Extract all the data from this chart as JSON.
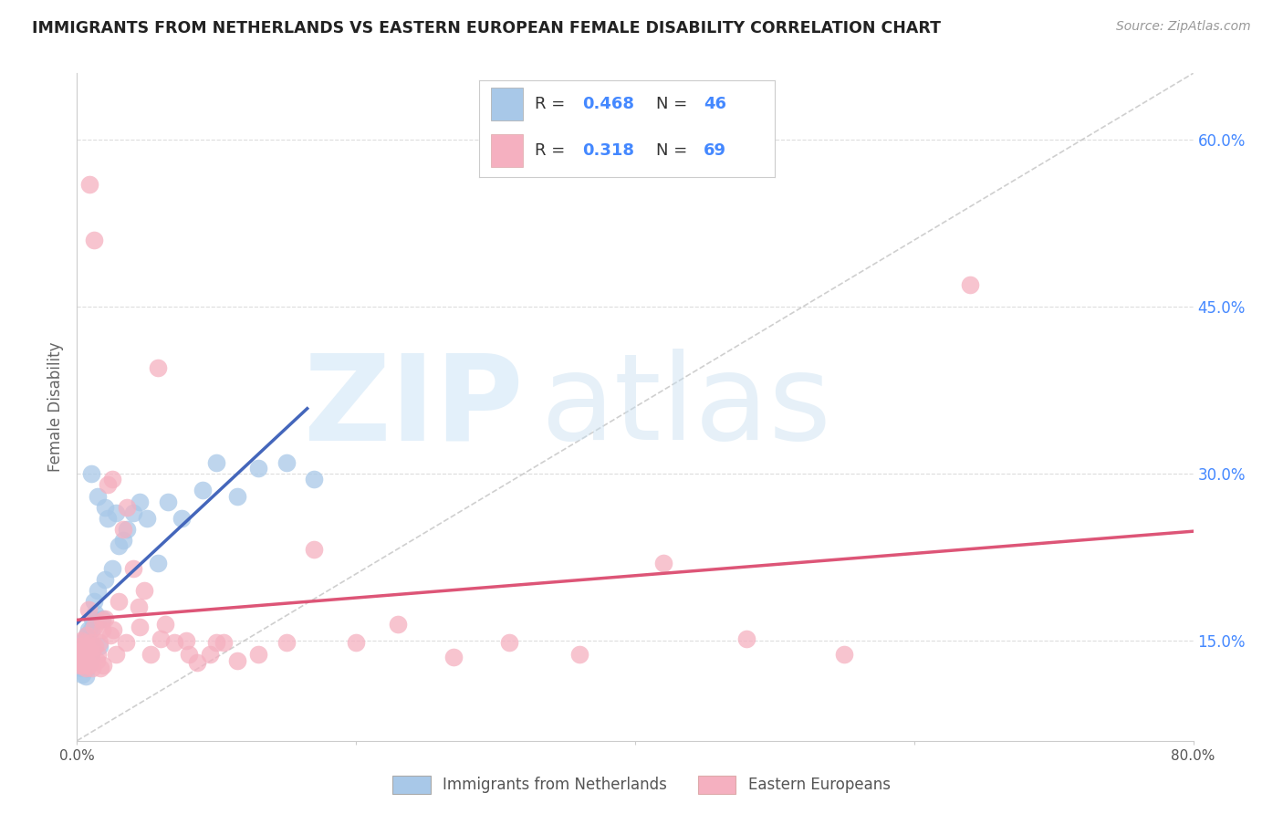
{
  "title": "IMMIGRANTS FROM NETHERLANDS VS EASTERN EUROPEAN FEMALE DISABILITY CORRELATION CHART",
  "source": "Source: ZipAtlas.com",
  "ylabel": "Female Disability",
  "x_min": 0.0,
  "x_max": 0.8,
  "y_min": 0.06,
  "y_max": 0.66,
  "y_ticks_right": [
    0.15,
    0.3,
    0.45,
    0.6
  ],
  "y_tick_labels_right": [
    "15.0%",
    "30.0%",
    "45.0%",
    "60.0%"
  ],
  "x_ticks": [
    0.0,
    0.2,
    0.4,
    0.6,
    0.8
  ],
  "x_tick_labels": [
    "0.0%",
    "",
    "",
    "",
    "80.0%"
  ],
  "legend_label1": "Immigrants from Netherlands",
  "legend_label2": "Eastern Europeans",
  "R1": "0.468",
  "N1": "46",
  "R2": "0.318",
  "N2": "69",
  "color1": "#a8c8e8",
  "color2": "#f5b0c0",
  "line_color1": "#4466bb",
  "line_color2": "#dd5577",
  "blue_text_color": "#4488ff",
  "scatter1_x": [
    0.001,
    0.002,
    0.002,
    0.003,
    0.003,
    0.004,
    0.004,
    0.005,
    0.005,
    0.006,
    0.006,
    0.007,
    0.007,
    0.008,
    0.008,
    0.009,
    0.01,
    0.01,
    0.011,
    0.012,
    0.013,
    0.015,
    0.016,
    0.018,
    0.02,
    0.022,
    0.025,
    0.028,
    0.03,
    0.033,
    0.036,
    0.04,
    0.045,
    0.05,
    0.058,
    0.065,
    0.075,
    0.09,
    0.1,
    0.115,
    0.13,
    0.15,
    0.17,
    0.01,
    0.02,
    0.015
  ],
  "scatter1_y": [
    0.135,
    0.14,
    0.13,
    0.145,
    0.125,
    0.138,
    0.12,
    0.15,
    0.128,
    0.142,
    0.118,
    0.155,
    0.125,
    0.148,
    0.16,
    0.13,
    0.16,
    0.135,
    0.17,
    0.185,
    0.175,
    0.195,
    0.145,
    0.17,
    0.205,
    0.26,
    0.215,
    0.265,
    0.235,
    0.24,
    0.25,
    0.265,
    0.275,
    0.26,
    0.22,
    0.275,
    0.26,
    0.285,
    0.31,
    0.28,
    0.305,
    0.31,
    0.295,
    0.3,
    0.27,
    0.28
  ],
  "scatter2_x": [
    0.001,
    0.001,
    0.002,
    0.002,
    0.003,
    0.003,
    0.004,
    0.004,
    0.005,
    0.005,
    0.006,
    0.006,
    0.007,
    0.007,
    0.008,
    0.008,
    0.009,
    0.01,
    0.01,
    0.011,
    0.012,
    0.013,
    0.014,
    0.015,
    0.016,
    0.017,
    0.018,
    0.019,
    0.02,
    0.022,
    0.024,
    0.026,
    0.028,
    0.03,
    0.033,
    0.036,
    0.04,
    0.044,
    0.048,
    0.053,
    0.058,
    0.063,
    0.07,
    0.078,
    0.086,
    0.095,
    0.105,
    0.115,
    0.13,
    0.15,
    0.17,
    0.2,
    0.23,
    0.27,
    0.31,
    0.36,
    0.42,
    0.48,
    0.55,
    0.64,
    0.012,
    0.018,
    0.008,
    0.025,
    0.035,
    0.045,
    0.06,
    0.08,
    0.1
  ],
  "scatter2_y": [
    0.14,
    0.132,
    0.145,
    0.128,
    0.138,
    0.15,
    0.135,
    0.128,
    0.142,
    0.13,
    0.148,
    0.125,
    0.155,
    0.132,
    0.128,
    0.142,
    0.56,
    0.138,
    0.148,
    0.125,
    0.51,
    0.145,
    0.132,
    0.138,
    0.148,
    0.125,
    0.16,
    0.128,
    0.17,
    0.29,
    0.155,
    0.16,
    0.138,
    0.185,
    0.25,
    0.27,
    0.215,
    0.18,
    0.195,
    0.138,
    0.395,
    0.165,
    0.148,
    0.15,
    0.13,
    0.138,
    0.148,
    0.132,
    0.138,
    0.148,
    0.232,
    0.148,
    0.165,
    0.135,
    0.148,
    0.138,
    0.22,
    0.152,
    0.138,
    0.47,
    0.162,
    0.168,
    0.178,
    0.295,
    0.148,
    0.162,
    0.152,
    0.138,
    0.148
  ],
  "watermark_zip": "ZIP",
  "watermark_atlas": "atlas",
  "background_color": "#ffffff",
  "grid_color": "#dddddd",
  "diag_line_color": "#bbbbbb",
  "trend_line1_x_end": 0.165,
  "trend_line2_x_start": 0.0,
  "trend_line2_x_end": 0.8
}
